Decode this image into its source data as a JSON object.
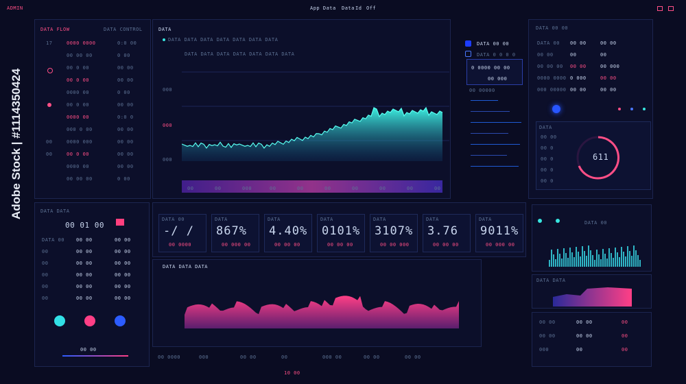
{
  "topbar": {
    "left": "ADMIN",
    "center_a": "App Data",
    "center_b": "Data",
    "center_c": "Id",
    "center_d": "Off"
  },
  "left_panel": {
    "header_a": "DATA FLOW",
    "header_b": "DATA CONTROL",
    "rows": [
      [
        "17",
        "0000 0000",
        "0:0 00"
      ],
      [
        "",
        "00 00 00",
        "0 00"
      ],
      [
        "",
        "00 0 00",
        "00 00"
      ],
      [
        "",
        "00 0 00",
        "00 00"
      ],
      [
        "",
        "0000 00",
        "0 00"
      ],
      [
        "",
        "00 0 00",
        "00 00"
      ],
      [
        "",
        "0000 00",
        "0:0 0"
      ],
      [
        "",
        "000 0 00",
        "00 00"
      ],
      [
        "00",
        "0000 000",
        "00 00"
      ],
      [
        "00",
        "00 0 00",
        "00 00"
      ],
      [
        "",
        "0000 00",
        "00 00"
      ],
      [
        "",
        "00 00 00",
        "0 00"
      ]
    ]
  },
  "main_chart": {
    "tab": "DATA",
    "legend": "DATA DATA DATA DATA DATA DATA DATA",
    "y_labels": [
      "000",
      "000",
      "000"
    ],
    "x_labels": [
      "00",
      "00",
      "000",
      "00",
      "00",
      "00",
      "00",
      "00",
      "00",
      "00"
    ]
  },
  "right_mid": {
    "title": "DATA 00 00",
    "sub": "DATA 0 0 0 0",
    "box_a": "0 0000 00 00",
    "box_b": "00 000",
    "box_c": "00 00000"
  },
  "right_panel": {
    "header": "DATA 00 00",
    "rows": [
      [
        "DATA 00",
        "00 00",
        "00 00"
      ],
      [
        "00 00",
        "00",
        "00"
      ],
      [
        "00 00 00",
        "00 00",
        "00 000"
      ],
      [
        "0000 0000",
        "0 000",
        "00 00"
      ],
      [
        "000 00000",
        "00 00",
        "00 00"
      ]
    ],
    "gauge_label": "DATA",
    "gauge_value": "611",
    "list": [
      "00 00",
      "00 0",
      "00 0",
      "00 0",
      "00 0"
    ]
  },
  "kpis": [
    {
      "label": "DATA 00",
      "value": "-/ /",
      "sub": "00 0000"
    },
    {
      "label": "DATA",
      "value": "867%",
      "sub": "00 000 00"
    },
    {
      "label": "DATA",
      "value": "4.40%",
      "sub": "00 00 00"
    },
    {
      "label": "DATA",
      "value": "0101%",
      "sub": "00 00 00"
    },
    {
      "label": "DATA",
      "value": "3107%",
      "sub": "00 00 000"
    },
    {
      "label": "DATA",
      "value": "3.76",
      "sub": "00 00 00"
    },
    {
      "label": "DATA",
      "value": "9011%",
      "sub": "00 000 00"
    }
  ],
  "bottom_left": {
    "header": "DATA DATA",
    "kpi": "00 01 00",
    "rows": [
      [
        "DATA 00",
        "00 00",
        "00 00"
      ],
      [
        "00",
        "00 00",
        "00 00"
      ],
      [
        "00",
        "00 00",
        "00 00"
      ],
      [
        "00",
        "00 00",
        "00 00"
      ],
      [
        "00",
        "00 00",
        "00 00"
      ],
      [
        "00",
        "00 00",
        "00 00"
      ]
    ],
    "button_label": "00 00"
  },
  "bottom_chart": {
    "title": "DATA DATA DATA",
    "x_labels": [
      "00 000",
      "00",
      "00",
      "0 00",
      "000",
      "00",
      "00",
      "000",
      "00",
      "00"
    ]
  },
  "bottom_right": {
    "title": "DATA 00",
    "sub": "DATA DATA",
    "rows": [
      [
        "00 00",
        "00 00",
        "00"
      ],
      [
        "00 00",
        "00 00",
        "00"
      ],
      [
        "000",
        "00",
        "00"
      ]
    ]
  },
  "footer": {
    "center": "10 00",
    "items": [
      "00 0000",
      "000",
      "00 00",
      "00",
      "000 00",
      "00 00",
      "00 00"
    ]
  },
  "watermark": "Adobe Stock | #1114350424",
  "colors": {
    "bg": "#0a0c22",
    "cyan": "#38e6e0",
    "pink": "#ff4f86",
    "blue": "#4a78ff"
  }
}
